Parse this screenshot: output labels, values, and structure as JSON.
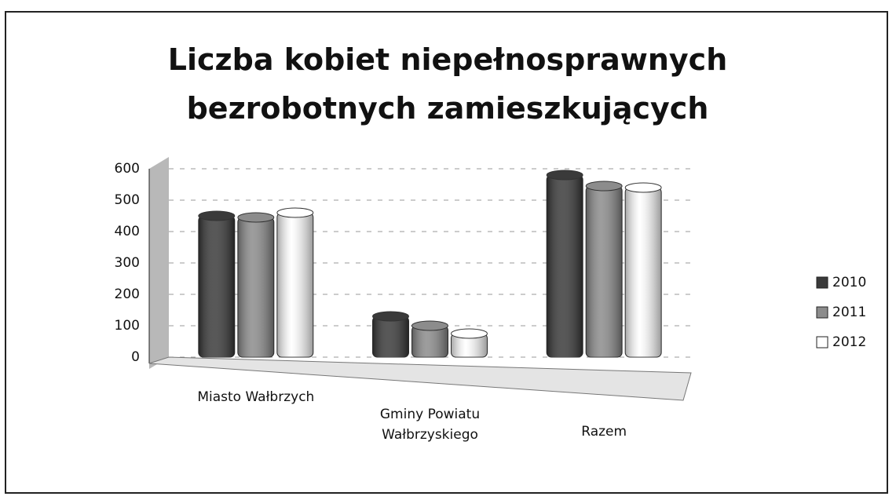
{
  "chart_data": {
    "type": "bar",
    "title": "Liczba kobiet niepełnosprawnych bezrobotnych zamieszkujących",
    "categories": [
      "Miasto Wałbrzych",
      "Gminy Powiatu Wałbrzyskiego",
      "Razem"
    ],
    "series": [
      {
        "name": "2010",
        "color": "#3a3a3a",
        "values": [
          450,
          130,
          580
        ]
      },
      {
        "name": "2011",
        "color": "#8c8c8c",
        "values": [
          445,
          100,
          545
        ]
      },
      {
        "name": "2012",
        "color": "#ffffff",
        "values": [
          460,
          75,
          540
        ]
      }
    ],
    "ylim": [
      0,
      600
    ],
    "yticks": [
      0,
      100,
      200,
      300,
      400,
      500,
      600
    ],
    "grid": true,
    "legend": "right"
  }
}
